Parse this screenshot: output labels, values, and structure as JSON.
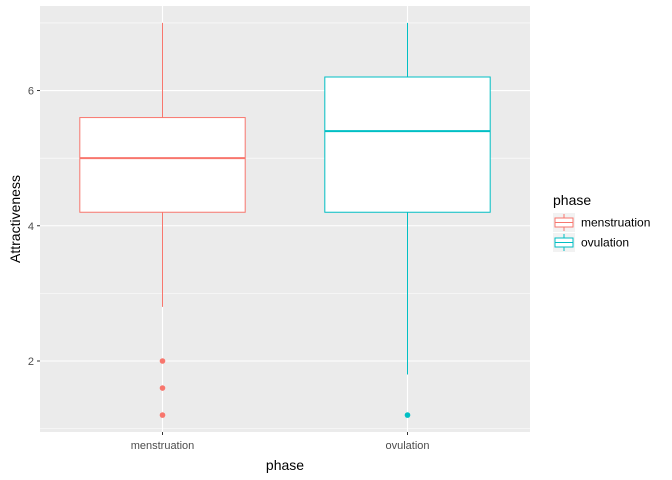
{
  "chart_data": {
    "type": "boxplot",
    "xlabel": "phase",
    "ylabel": "Attractiveness",
    "categories": [
      "menstruation",
      "ovulation"
    ],
    "yticks": [
      2,
      4,
      6
    ],
    "ylim": [
      0.95,
      7.25
    ],
    "grid": true,
    "legend": {
      "title": "phase",
      "placement": "right",
      "entries": [
        "menstruation",
        "ovulation"
      ]
    },
    "series": [
      {
        "name": "menstruation",
        "color": "#F8766D",
        "whisker_low": 2.8,
        "q1": 4.2,
        "median": 5.0,
        "q3": 5.6,
        "whisker_high": 7.0,
        "outliers": [
          2.0,
          1.6,
          1.2
        ]
      },
      {
        "name": "ovulation",
        "color": "#00BFC4",
        "whisker_low": 1.8,
        "q1": 4.2,
        "median": 5.4,
        "q3": 6.2,
        "whisker_high": 7.0,
        "outliers": [
          1.2
        ]
      }
    ]
  }
}
